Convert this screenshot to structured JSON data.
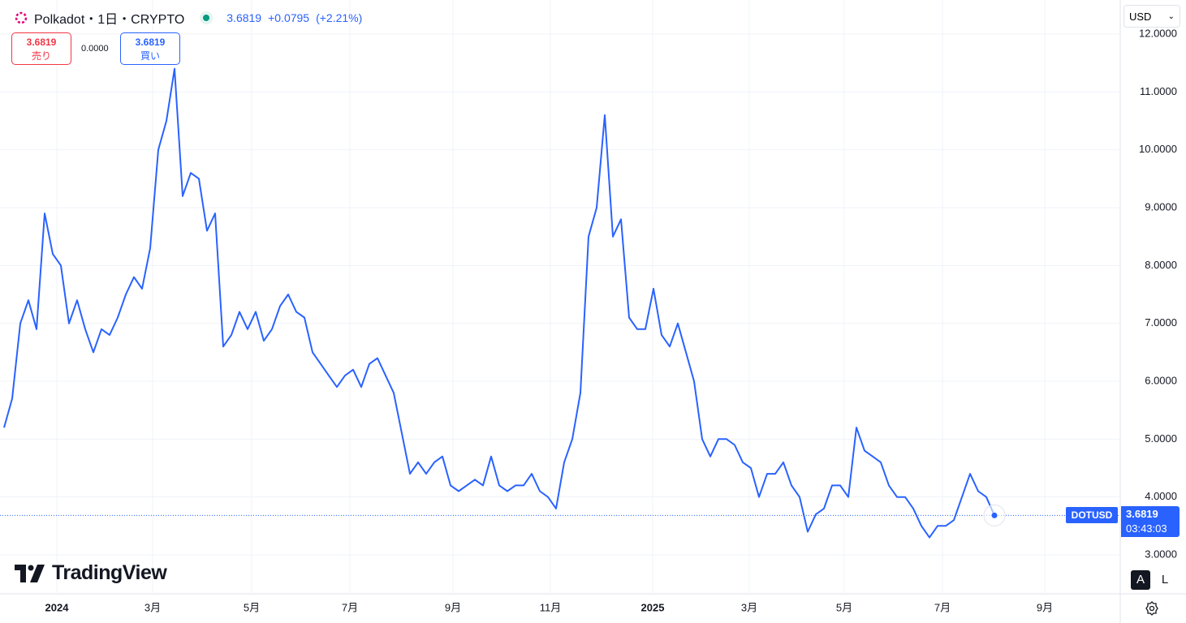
{
  "header": {
    "symbol": "Polkadot・1日・CRYPTO",
    "price": "3.6819",
    "change": "+0.0795",
    "change_pct": "(+2.21%)",
    "sell_price": "3.6819",
    "sell_label": "売り",
    "spread": "0.0000",
    "buy_price": "3.6819",
    "buy_label": "買い",
    "currency": "USD",
    "ticker_tag": "DOTUSD",
    "last_price_tag": "3.6819",
    "countdown": "03:43:03",
    "logo": "TradingView",
    "auto_button": "A",
    "log_button": "L"
  },
  "chart_data": {
    "type": "line",
    "grid": true,
    "series": [
      {
        "name": "DOTUSD",
        "color": "#2962ff",
        "values": [
          5.2,
          5.7,
          7.0,
          7.4,
          6.9,
          8.9,
          8.2,
          8.0,
          7.0,
          7.4,
          6.9,
          6.5,
          6.9,
          6.8,
          7.1,
          7.5,
          7.8,
          7.6,
          8.3,
          10.0,
          10.5,
          11.4,
          9.2,
          9.6,
          9.5,
          8.6,
          8.9,
          6.6,
          6.8,
          7.2,
          6.9,
          7.2,
          6.7,
          6.9,
          7.3,
          7.5,
          7.2,
          7.1,
          6.5,
          6.3,
          6.1,
          5.9,
          6.1,
          6.2,
          5.9,
          6.3,
          6.4,
          6.1,
          5.8,
          5.1,
          4.4,
          4.6,
          4.4,
          4.6,
          4.7,
          4.2,
          4.1,
          4.2,
          4.3,
          4.2,
          4.7,
          4.2,
          4.1,
          4.2,
          4.2,
          4.4,
          4.1,
          4.0,
          3.8,
          4.6,
          5.0,
          5.8,
          8.5,
          9.0,
          10.6,
          8.5,
          8.8,
          7.1,
          6.9,
          6.9,
          7.6,
          6.8,
          6.6,
          7.0,
          6.5,
          6.0,
          5.0,
          4.7,
          5.0,
          5.0,
          4.9,
          4.6,
          4.5,
          4.0,
          4.4,
          4.4,
          4.6,
          4.2,
          4.0,
          3.4,
          3.7,
          3.8,
          4.2,
          4.2,
          4.0,
          5.2,
          4.8,
          4.7,
          4.6,
          4.2,
          4.0,
          4.0,
          3.8,
          3.5,
          3.3,
          3.5,
          3.5,
          3.6,
          4.0,
          4.4,
          4.1,
          4.0,
          3.6819
        ]
      }
    ],
    "xlim": [
      0,
      137.5
    ],
    "xticks": [
      {
        "value": 6.5,
        "label": "2024"
      },
      {
        "value": 18.3,
        "label": "3月"
      },
      {
        "value": 30.5,
        "label": "5月"
      },
      {
        "value": 42.6,
        "label": "7月"
      },
      {
        "value": 55.3,
        "label": "9月"
      },
      {
        "value": 67.3,
        "label": "11月"
      },
      {
        "value": 79.9,
        "label": "2025"
      },
      {
        "value": 91.8,
        "label": "3月"
      },
      {
        "value": 103.5,
        "label": "5月"
      },
      {
        "value": 115.6,
        "label": "7月"
      },
      {
        "value": 128.2,
        "label": "9月"
      }
    ],
    "ylim": [
      2.327,
      12.589
    ],
    "yticks": [
      {
        "value": 3,
        "label": "3.0000"
      },
      {
        "value": 4,
        "label": "4.0000"
      },
      {
        "value": 5,
        "label": "5.0000"
      },
      {
        "value": 6,
        "label": "6.0000"
      },
      {
        "value": 7,
        "label": "7.0000"
      },
      {
        "value": 8,
        "label": "8.0000"
      },
      {
        "value": 9,
        "label": "9.0000"
      },
      {
        "value": 10,
        "label": "10.0000"
      },
      {
        "value": 11,
        "label": "11.0000"
      },
      {
        "value": 12,
        "label": "12.0000"
      }
    ]
  }
}
